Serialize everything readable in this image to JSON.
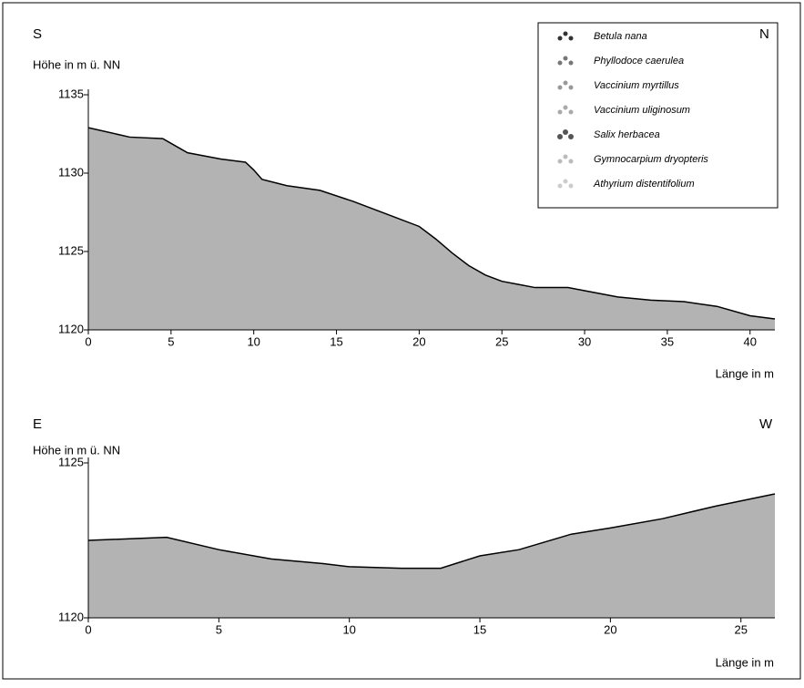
{
  "chart_data": [
    {
      "type": "area",
      "left_label": "S",
      "right_label": "N",
      "ylabel": "Höhe in m ü. NN",
      "xlabel": "Länge in m",
      "x": [
        0,
        2.5,
        4.5,
        5,
        6,
        8,
        9.5,
        10,
        10.5,
        12,
        14,
        16,
        18,
        20,
        21,
        22,
        23,
        24,
        25,
        26,
        27,
        29,
        30,
        32,
        34,
        36,
        38,
        40,
        41.5
      ],
      "values": [
        1132.9,
        1132.3,
        1132.2,
        1131.9,
        1131.3,
        1130.9,
        1130.7,
        1130.2,
        1129.6,
        1129.2,
        1128.9,
        1128.2,
        1127.4,
        1126.6,
        1125.8,
        1124.9,
        1124.1,
        1123.5,
        1123.1,
        1122.9,
        1122.7,
        1122.7,
        1122.5,
        1122.1,
        1121.9,
        1121.8,
        1121.5,
        1120.9,
        1120.7
      ],
      "color": "#b3b3b3",
      "xlim": [
        0,
        41.5
      ],
      "ylim": [
        1120,
        1135
      ],
      "xticks": [
        0,
        5,
        10,
        15,
        20,
        25,
        30,
        35,
        40
      ],
      "yticks": [
        1120,
        1125,
        1130,
        1135
      ],
      "legend": [
        "Betula nana",
        "Phyllodoce caerulea",
        "Vaccinium myrtillus",
        "Vaccinium uliginosum",
        "Salix herbacea",
        "Gymnocarpium dryopteris",
        "Athyrium distentifolium"
      ]
    },
    {
      "type": "area",
      "left_label": "E",
      "right_label": "W",
      "ylabel": "Höhe in m ü. NN",
      "xlabel": "Länge in m",
      "x": [
        0,
        3,
        5,
        7,
        9,
        10,
        12,
        13.5,
        15,
        16.5,
        18.5,
        20,
        22,
        24,
        26.3
      ],
      "values": [
        1122.5,
        1122.6,
        1122.2,
        1121.9,
        1121.75,
        1121.65,
        1121.6,
        1121.6,
        1122.0,
        1122.2,
        1122.7,
        1122.9,
        1123.2,
        1123.6,
        1124.0
      ],
      "color": "#b3b3b3",
      "xlim": [
        0,
        26.3
      ],
      "ylim": [
        1120,
        1125
      ],
      "xticks": [
        0,
        5,
        10,
        15,
        20,
        25
      ],
      "yticks": [
        1120,
        1125
      ]
    }
  ]
}
